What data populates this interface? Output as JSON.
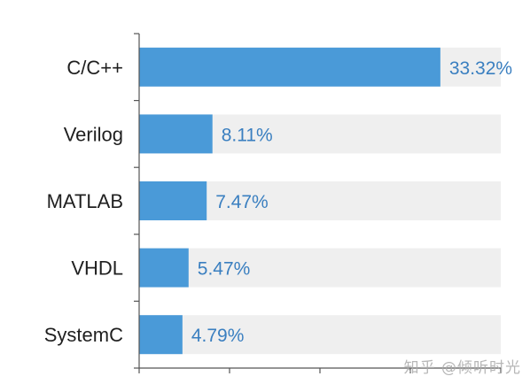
{
  "chart_data": {
    "type": "bar",
    "orientation": "horizontal",
    "categories": [
      "C/C++",
      "Verilog",
      "MATLAB",
      "VHDL",
      "SystemC"
    ],
    "values": [
      33.32,
      8.11,
      7.47,
      5.47,
      4.79
    ],
    "value_labels": [
      "33.32%",
      "8.11%",
      "7.47%",
      "5.47%",
      "4.79%"
    ],
    "xlim": [
      0,
      40
    ],
    "title": "",
    "xlabel": "",
    "ylabel": "",
    "grid": false,
    "legend": "none",
    "colors": {
      "bar": "#4a9ad8",
      "track": "#efefef",
      "axis": "#555555",
      "value_text": "#3a7fc0",
      "category_text": "#1f1f1f"
    }
  },
  "watermark": "知乎 @倾听时光"
}
